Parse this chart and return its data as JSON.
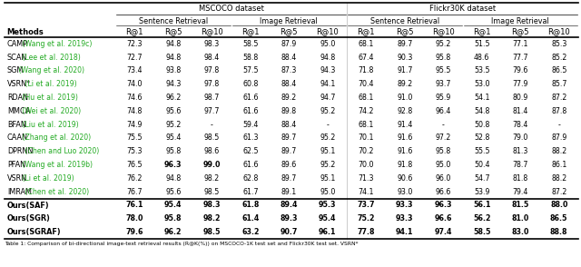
{
  "title_mscoco": "MSCOCO dataset",
  "title_flickr": "Flickr30K dataset",
  "methods_plain": [
    "CAMP",
    "SCAN",
    "SGM",
    "VSRN*",
    "RDAN",
    "MMCA",
    "BFAN",
    "CAAN",
    "DPRNN",
    "PFAN",
    "VSRN",
    "IMRAM",
    "Ours(SAF)",
    "Ours(SGR)",
    "Ours(SGRAF)"
  ],
  "methods_cite": [
    " (Wang et al. 2019c)",
    " (Lee et al. 2018)",
    " (Wang et al. 2020)",
    " (Li et al. 2019)",
    " (Hu et al. 2019)",
    " (Wei et al. 2020)",
    " (Liu et al. 2019)",
    " (Zhang et al. 2020)",
    " (Chen and Luo 2020)",
    " (Wang et al. 2019b)",
    " (Li et al. 2019)",
    " (Chen et al. 2020)",
    "",
    "",
    ""
  ],
  "data": [
    [
      72.3,
      94.8,
      98.3,
      58.5,
      87.9,
      95.0,
      68.1,
      89.7,
      95.2,
      51.5,
      77.1,
      85.3
    ],
    [
      72.7,
      94.8,
      98.4,
      58.8,
      88.4,
      94.8,
      67.4,
      90.3,
      95.8,
      48.6,
      77.7,
      85.2
    ],
    [
      73.4,
      93.8,
      97.8,
      57.5,
      87.3,
      94.3,
      71.8,
      91.7,
      95.5,
      53.5,
      79.6,
      86.5
    ],
    [
      74.0,
      94.3,
      97.8,
      60.8,
      88.4,
      94.1,
      70.4,
      89.2,
      93.7,
      53.0,
      77.9,
      85.7
    ],
    [
      74.6,
      96.2,
      98.7,
      61.6,
      89.2,
      94.7,
      68.1,
      91.0,
      95.9,
      54.1,
      80.9,
      87.2
    ],
    [
      74.8,
      95.6,
      97.7,
      61.6,
      89.8,
      95.2,
      74.2,
      92.8,
      96.4,
      54.8,
      81.4,
      87.8
    ],
    [
      74.9,
      95.2,
      null,
      59.4,
      88.4,
      null,
      68.1,
      91.4,
      null,
      50.8,
      78.4,
      null
    ],
    [
      75.5,
      95.4,
      98.5,
      61.3,
      89.7,
      95.2,
      70.1,
      91.6,
      97.2,
      52.8,
      79.0,
      87.9
    ],
    [
      75.3,
      95.8,
      98.6,
      62.5,
      89.7,
      95.1,
      70.2,
      91.6,
      95.8,
      55.5,
      81.3,
      88.2
    ],
    [
      76.5,
      96.3,
      99.0,
      61.6,
      89.6,
      95.2,
      70.0,
      91.8,
      95.0,
      50.4,
      78.7,
      86.1
    ],
    [
      76.2,
      94.8,
      98.2,
      62.8,
      89.7,
      95.1,
      71.3,
      90.6,
      96.0,
      54.7,
      81.8,
      88.2
    ],
    [
      76.7,
      95.6,
      98.5,
      61.7,
      89.1,
      95.0,
      74.1,
      93.0,
      96.6,
      53.9,
      79.4,
      87.2
    ],
    [
      76.1,
      95.4,
      98.3,
      61.8,
      89.4,
      95.3,
      73.7,
      93.3,
      96.3,
      56.1,
      81.5,
      88.0
    ],
    [
      78.0,
      95.8,
      98.2,
      61.4,
      89.3,
      95.4,
      75.2,
      93.3,
      96.6,
      56.2,
      81.0,
      86.5
    ],
    [
      79.6,
      96.2,
      98.5,
      63.2,
      90.7,
      96.1,
      77.8,
      94.1,
      97.4,
      58.5,
      83.0,
      88.8
    ]
  ],
  "bold_pfan": [
    1,
    2
  ],
  "bold_sgraf": [
    0,
    3,
    4,
    6,
    9,
    10,
    11
  ],
  "ours_rows": [
    12,
    13,
    14
  ],
  "separator_after_row": 11,
  "cite_color": "#22aa22",
  "figsize": [
    6.4,
    2.94
  ],
  "dpi": 100,
  "caption": "Table 1: Comparison of bi-directional image-text retrieval results (R@K(%)) on MSCOCO-1K test set and Flickr30K test set. VSRN*"
}
